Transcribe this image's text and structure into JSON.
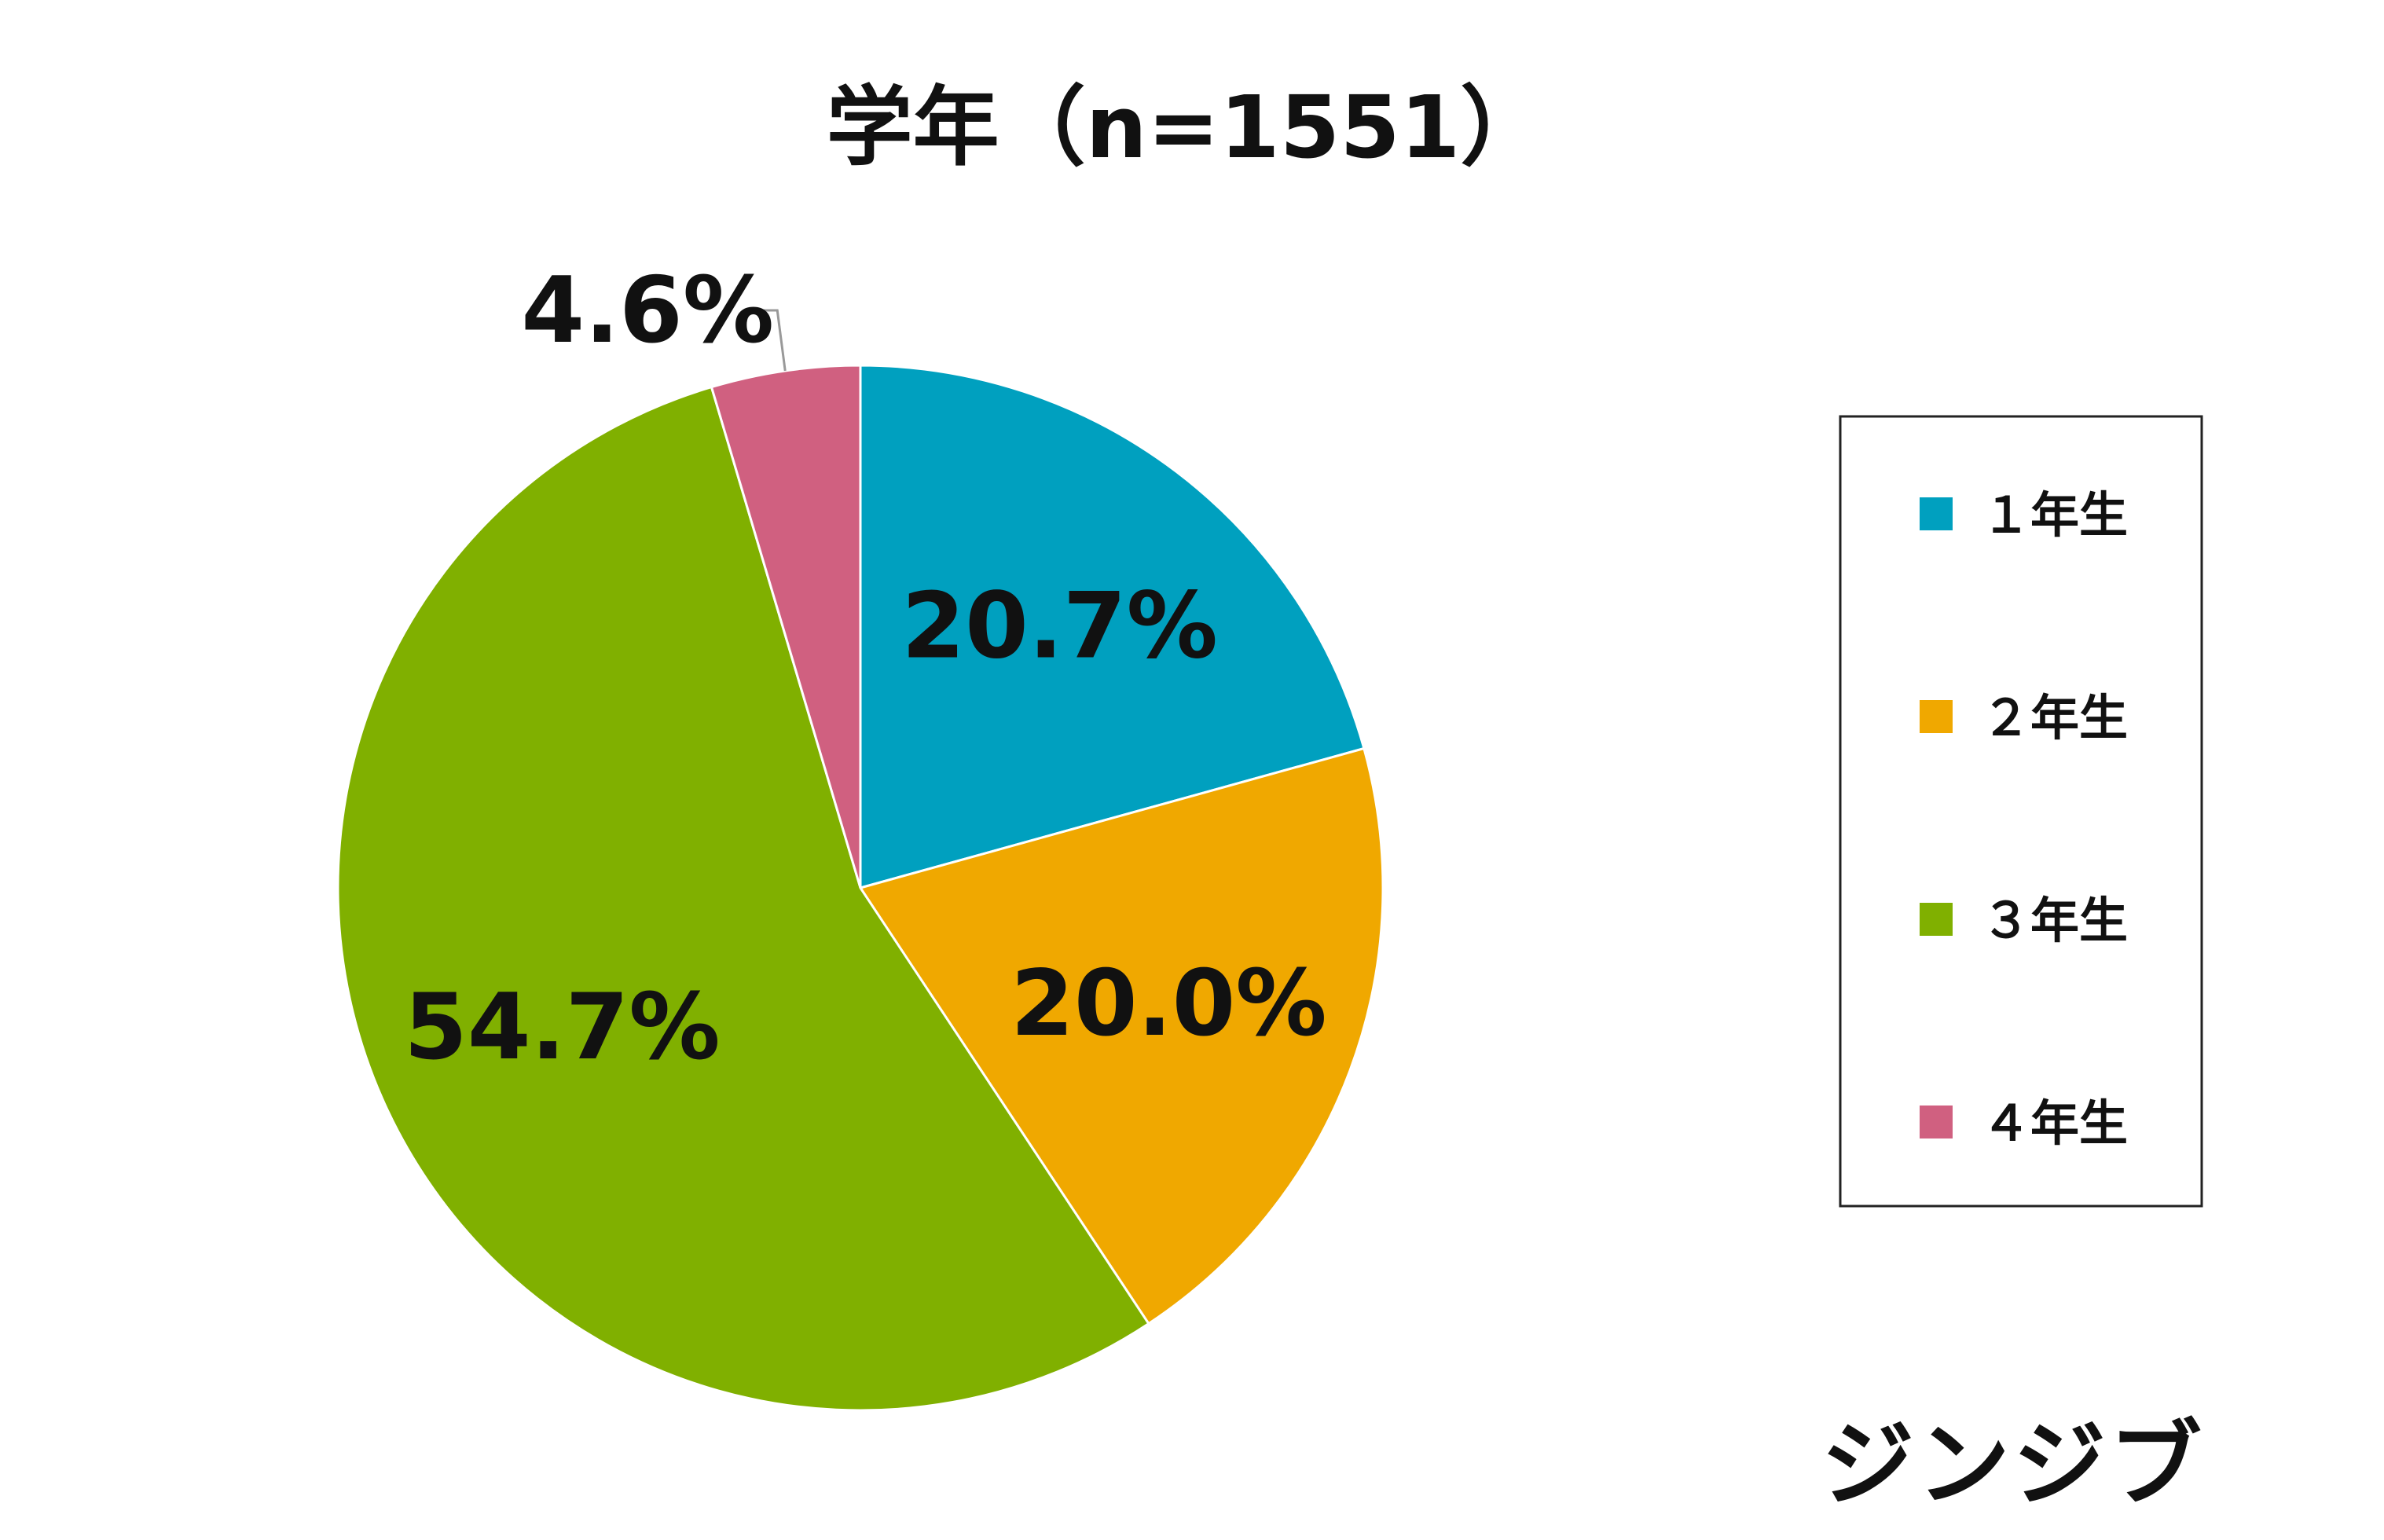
{
  "chart_data": {
    "type": "pie",
    "title": "学年（n=1551）",
    "categories": [
      "１年生",
      "２年生",
      "３年生",
      "４年生"
    ],
    "values": [
      20.7,
      20.0,
      54.7,
      4.6
    ],
    "labels": [
      "20.7%",
      "20.0%",
      "54.7%",
      "4.6%"
    ],
    "colors": [
      "#00A0BF",
      "#F0A800",
      "#80B000",
      "#D06080"
    ],
    "start_angle": "12 o'clock",
    "direction": "clockwise",
    "legend_position": "right",
    "unit": "%"
  },
  "logo": {
    "text": "ジンジブ"
  }
}
